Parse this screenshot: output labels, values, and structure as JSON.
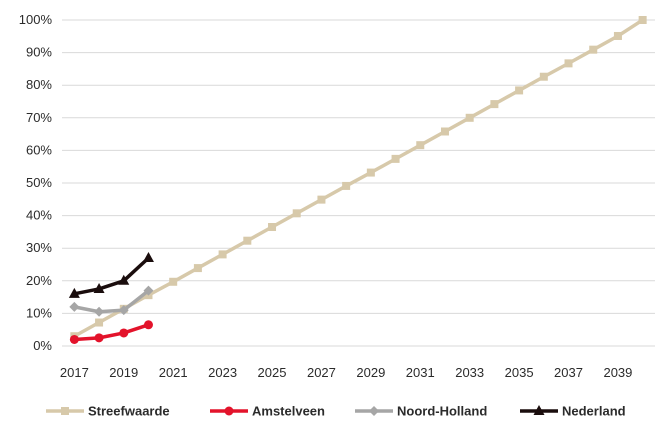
{
  "chart_data": {
    "type": "line",
    "title": "",
    "xlabel": "",
    "ylabel": "",
    "x": [
      2017,
      2018,
      2019,
      2020,
      2021,
      2022,
      2023,
      2024,
      2025,
      2026,
      2027,
      2028,
      2029,
      2030,
      2031,
      2032,
      2033,
      2034,
      2035,
      2036,
      2037,
      2038,
      2039,
      2040
    ],
    "x_tick_labels": [
      "2017",
      "2019",
      "2021",
      "2023",
      "2025",
      "2027",
      "2029",
      "2031",
      "2033",
      "2035",
      "2037",
      "2039"
    ],
    "x_tick_values": [
      2017,
      2019,
      2021,
      2023,
      2025,
      2027,
      2029,
      2031,
      2033,
      2035,
      2037,
      2039
    ],
    "xlim": [
      2016.5,
      2040.5
    ],
    "ylim": [
      0,
      100
    ],
    "y_tick_values": [
      0,
      10,
      20,
      30,
      40,
      50,
      60,
      70,
      80,
      90,
      100
    ],
    "y_tick_labels": [
      "0%",
      "10%",
      "20%",
      "30%",
      "40%",
      "50%",
      "60%",
      "70%",
      "80%",
      "90%",
      "100%"
    ],
    "grid": "horizontal",
    "legend_position": "bottom",
    "series": [
      {
        "name": "Streefwaarde",
        "color": "#d7c9aa",
        "marker": "square",
        "x": [
          2017,
          2018,
          2019,
          2020,
          2021,
          2022,
          2023,
          2024,
          2025,
          2026,
          2027,
          2028,
          2029,
          2030,
          2031,
          2032,
          2033,
          2034,
          2035,
          2036,
          2037,
          2038,
          2039,
          2040
        ],
        "values": [
          3,
          7.2,
          11.4,
          15.6,
          19.7,
          23.9,
          28.1,
          32.3,
          36.5,
          40.7,
          44.9,
          49.1,
          53.2,
          57.4,
          61.6,
          65.8,
          70,
          74.2,
          78.4,
          82.6,
          86.7,
          90.9,
          95.1,
          100
        ]
      },
      {
        "name": "Amstelveen",
        "color": "#e3132b",
        "marker": "circle",
        "x": [
          2017,
          2018,
          2019,
          2020
        ],
        "values": [
          2,
          2.5,
          4,
          6.5
        ]
      },
      {
        "name": "Noord-Holland",
        "color": "#a6a6a6",
        "marker": "diamond",
        "x": [
          2017,
          2018,
          2019,
          2020
        ],
        "values": [
          12,
          10.5,
          11,
          17
        ]
      },
      {
        "name": "Nederland",
        "color": "#1a0d0d",
        "marker": "triangle",
        "x": [
          2017,
          2018,
          2019,
          2020
        ],
        "values": [
          16,
          17.5,
          20,
          27
        ]
      }
    ]
  }
}
